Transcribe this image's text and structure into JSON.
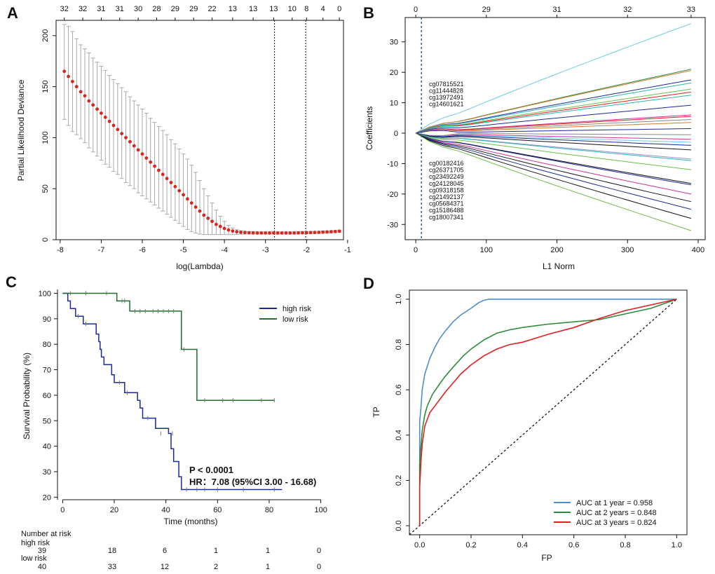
{
  "colors": {
    "red_dot": "#d7261e",
    "err_bar": "#aaaaaa",
    "high_risk": "#1a2a9c",
    "low_risk": "#1e6e2a",
    "roc1": "#4d8ec9",
    "roc2": "#2e8b3a",
    "roc3": "#e02020",
    "vline_b": "#2b5fb8"
  },
  "chart_data": [
    {
      "panel": "A",
      "type": "scatter",
      "xlabel": "log(Lambda)",
      "ylabel": "Partial Likelihood Deviance",
      "xlim": [
        -8.1,
        -1.1
      ],
      "ylim": [
        0,
        215
      ],
      "xticks": [
        -8,
        -7,
        -6,
        -5,
        -4,
        -3,
        -2,
        -1
      ],
      "yticks": [
        0,
        50,
        100,
        150,
        200
      ],
      "top_labels": [
        "32",
        "32",
        "31",
        "31",
        "30",
        "28",
        "29",
        "29",
        "22",
        "13",
        "13",
        "13",
        "10",
        "8",
        "4",
        "0"
      ],
      "top_label_x": [
        -7.9,
        -7.45,
        -7.0,
        -6.55,
        -6.1,
        -5.65,
        -5.2,
        -4.75,
        -4.3,
        -3.8,
        -3.3,
        -2.8,
        -2.35,
        -2.0,
        -1.6,
        -1.2
      ],
      "vlines": [
        -2.78,
        -2.02
      ],
      "x": [
        -7.9,
        -7.8,
        -7.7,
        -7.6,
        -7.5,
        -7.4,
        -7.3,
        -7.2,
        -7.1,
        -7.0,
        -6.9,
        -6.8,
        -6.7,
        -6.6,
        -6.5,
        -6.4,
        -6.3,
        -6.2,
        -6.1,
        -6.0,
        -5.9,
        -5.8,
        -5.7,
        -5.6,
        -5.5,
        -5.4,
        -5.3,
        -5.2,
        -5.1,
        -5.0,
        -4.9,
        -4.8,
        -4.7,
        -4.6,
        -4.5,
        -4.4,
        -4.3,
        -4.2,
        -4.1,
        -4.0,
        -3.9,
        -3.8,
        -3.7,
        -3.6,
        -3.5,
        -3.4,
        -3.3,
        -3.2,
        -3.1,
        -3.0,
        -2.9,
        -2.8,
        -2.7,
        -2.6,
        -2.5,
        -2.4,
        -2.3,
        -2.2,
        -2.1,
        -2.0,
        -1.9,
        -1.8,
        -1.7,
        -1.6,
        -1.5,
        -1.4,
        -1.3,
        -1.2
      ],
      "y": [
        165,
        160,
        155,
        150,
        145,
        141,
        136,
        132,
        128,
        124,
        120,
        116,
        112,
        108,
        104,
        100,
        96,
        92,
        88,
        84,
        80,
        76,
        72,
        68,
        64,
        60,
        56,
        52,
        48,
        44,
        40,
        36,
        32,
        28,
        24,
        21,
        18,
        15,
        13,
        11,
        9.5,
        8.5,
        7.8,
        7.3,
        7.0,
        6.8,
        6.7,
        6.6,
        6.6,
        6.6,
        6.6,
        6.6,
        6.6,
        6.6,
        6.6,
        6.6,
        6.6,
        6.7,
        6.8,
        6.9,
        7.0,
        7.1,
        7.2,
        7.4,
        7.6,
        7.8,
        8.0,
        8.3
      ],
      "err_upper": [
        211,
        209,
        204,
        197,
        191,
        187,
        183,
        178,
        174,
        170,
        166,
        161,
        157,
        153,
        149,
        145,
        140,
        136,
        132,
        128,
        124,
        119,
        115,
        111,
        107,
        103,
        98,
        94,
        89,
        84,
        79,
        73,
        66,
        58,
        50,
        43,
        36,
        29,
        23,
        18,
        14,
        11.5,
        9.8,
        8.8,
        8.3,
        8.0,
        7.8,
        7.7,
        7.7,
        7.7,
        7.7,
        7.7,
        7.7,
        7.7,
        7.7,
        7.7,
        7.7,
        7.8,
        7.9,
        8.0,
        8.1,
        8.2,
        8.3,
        8.5,
        8.7,
        8.9,
        9.1,
        9.4
      ],
      "err_lower": [
        118,
        112,
        106,
        103,
        99,
        95,
        90,
        86,
        82,
        78,
        74,
        71,
        67,
        64,
        60,
        56,
        53,
        50,
        46,
        43,
        40,
        37,
        34,
        31,
        28,
        25,
        22,
        19,
        16,
        13,
        10,
        8,
        6.5,
        5.5,
        5,
        5,
        5,
        5,
        5,
        5,
        5,
        5,
        5.2,
        5.4,
        5.5,
        5.5,
        5.5,
        5.5,
        5.5,
        5.5,
        5.5,
        5.5,
        5.5,
        5.5,
        5.5,
        5.5,
        5.5,
        5.6,
        5.7,
        5.8,
        5.9,
        6.0,
        6.1,
        6.3,
        6.5,
        6.7,
        6.9,
        7.2
      ]
    },
    {
      "panel": "B",
      "type": "line",
      "xlabel": "L1 Norm",
      "ylabel": "Coefficients",
      "xlim": [
        -15,
        410
      ],
      "ylim": [
        -35,
        38
      ],
      "xticks": [
        0,
        100,
        200,
        300,
        400
      ],
      "yticks": [
        -30,
        -20,
        -10,
        0,
        10,
        20,
        30
      ],
      "top_labels": [
        "0",
        "29",
        "31",
        "32",
        "33"
      ],
      "top_label_x": [
        0,
        100,
        200,
        300,
        390
      ],
      "vline": 8,
      "annot_pos": [
        "cg07815521",
        "cg11444828",
        "cg13972491",
        "cg14601621"
      ],
      "annot_neg": [
        "cg00182416",
        "cg26371705",
        "cg23492249",
        "cg24128045",
        "cg09318158",
        "cg21492137",
        "cg05684371",
        "cg15186488",
        "cg18007341"
      ],
      "x_end": 390,
      "series": [
        {
          "end": 36,
          "color": "#6ecbe6"
        },
        {
          "end": 21,
          "color": "#2e8b3a"
        },
        {
          "end": 20.6,
          "color": "#d87a30"
        },
        {
          "end": 17.5,
          "color": "#1a2a9c"
        },
        {
          "end": 16.5,
          "color": "#2bb5b0"
        },
        {
          "end": 14.5,
          "color": "#6abf4b"
        },
        {
          "end": 13.5,
          "color": "#e02020"
        },
        {
          "end": 12.5,
          "color": "#2bb5b0"
        },
        {
          "end": 9.2,
          "color": "#1a2a9c"
        },
        {
          "end": 6,
          "color": "#cc3399"
        },
        {
          "end": 5.5,
          "color": "#e02020"
        },
        {
          "end": 4.5,
          "color": "#888888"
        },
        {
          "end": 3.5,
          "color": "#d87a30"
        },
        {
          "end": 1.5,
          "color": "#1a2a9c"
        },
        {
          "end": -0.5,
          "color": "#888888"
        },
        {
          "end": -2,
          "color": "#cc3399"
        },
        {
          "end": -3,
          "color": "#6ecbe6"
        },
        {
          "end": -4,
          "color": "#1a2a9c"
        },
        {
          "end": -5.5,
          "color": "#111111"
        },
        {
          "end": -8.5,
          "color": "#9a8fd6"
        },
        {
          "end": -9,
          "color": "#2bb5b0"
        },
        {
          "end": -12,
          "color": "#6abf4b"
        },
        {
          "end": -16.5,
          "color": "#111111"
        },
        {
          "end": -17,
          "color": "#1a2a9c"
        },
        {
          "end": -20,
          "color": "#cc3399"
        },
        {
          "end": -22.5,
          "color": "#111111"
        },
        {
          "end": -25,
          "color": "#1a2a9c"
        },
        {
          "end": -28,
          "color": "#111111"
        },
        {
          "end": -32,
          "color": "#6abf4b"
        }
      ]
    },
    {
      "panel": "C",
      "type": "line",
      "xlabel": "Time (months)",
      "ylabel": "Survival Probability (%)",
      "xlim": [
        -2,
        102
      ],
      "ylim": [
        19,
        101.5
      ],
      "xticks": [
        0,
        20,
        40,
        60,
        80,
        100
      ],
      "yticks": [
        20,
        30,
        40,
        50,
        60,
        70,
        80,
        90,
        100
      ],
      "series": [
        {
          "name": "high risk",
          "color": "#1a2a9c",
          "steps": [
            [
              0,
              100
            ],
            [
              2,
              97
            ],
            [
              3,
              94
            ],
            [
              5,
              91
            ],
            [
              8,
              88
            ],
            [
              13,
              84
            ],
            [
              14,
              81
            ],
            [
              14.5,
              78
            ],
            [
              15,
              75
            ],
            [
              16,
              72
            ],
            [
              19,
              68
            ],
            [
              20,
              65
            ],
            [
              24,
              61
            ],
            [
              29,
              58
            ],
            [
              30,
              55
            ],
            [
              31,
              51
            ],
            [
              36,
              47
            ],
            [
              41,
              45
            ],
            [
              42,
              39
            ],
            [
              43,
              34
            ],
            [
              45,
              28
            ],
            [
              46,
              23
            ],
            [
              85,
              23
            ]
          ],
          "censors": [
            [
              6,
              91
            ],
            [
              9,
              88
            ],
            [
              22,
              65
            ],
            [
              25,
              61
            ],
            [
              33,
              51
            ],
            [
              38,
              45
            ],
            [
              42.5,
              45
            ],
            [
              48,
              23
            ],
            [
              52,
              23
            ],
            [
              55,
              23
            ],
            [
              60,
              23
            ],
            [
              70,
              23
            ],
            [
              82,
              23
            ]
          ]
        },
        {
          "name": "low risk",
          "color": "#1e6e2a",
          "steps": [
            [
              0,
              100
            ],
            [
              21,
              97
            ],
            [
              26,
              93
            ],
            [
              46,
              78
            ],
            [
              52,
              58
            ],
            [
              82,
              58
            ]
          ],
          "censors": [
            [
              3,
              100
            ],
            [
              9,
              100
            ],
            [
              17,
              100
            ],
            [
              23,
              97
            ],
            [
              24,
              97
            ],
            [
              28,
              93
            ],
            [
              30,
              93
            ],
            [
              32,
              93
            ],
            [
              35,
              93
            ],
            [
              37,
              93
            ],
            [
              39,
              93
            ],
            [
              41,
              93
            ],
            [
              43,
              93
            ],
            [
              47,
              78
            ],
            [
              55,
              58
            ],
            [
              62,
              58
            ],
            [
              66,
              58
            ],
            [
              77,
              58
            ],
            [
              82,
              58
            ]
          ]
        }
      ],
      "legend": [
        "high risk",
        "low risk"
      ],
      "p_text": "P < 0.0001",
      "hr_text": "HR：7.08 (95%CI 3.00 - 16.68)",
      "risk_table": {
        "title": "Number at risk",
        "rows": [
          {
            "label": "high risk",
            "values": [
              "39",
              "18",
              "6",
              "1",
              "1",
              "0"
            ]
          },
          {
            "label": "low risk",
            "values": [
              "40",
              "33",
              "12",
              "2",
              "1",
              "0"
            ]
          }
        ]
      }
    },
    {
      "panel": "D",
      "type": "line",
      "xlabel": "FP",
      "ylabel": "TP",
      "xlim": [
        -0.04,
        1.04
      ],
      "ylim": [
        -0.04,
        1.04
      ],
      "xticks": [
        0.0,
        0.2,
        0.4,
        0.6,
        0.8,
        1.0
      ],
      "yticks": [
        0.0,
        0.2,
        0.4,
        0.6,
        0.8,
        1.0
      ],
      "series": [
        {
          "name": "AUC at 1 year = 0.958",
          "color": "#4d8ec9",
          "x": [
            0,
            0,
            0.005,
            0.01,
            0.02,
            0.04,
            0.06,
            0.08,
            0.1,
            0.13,
            0.16,
            0.2,
            0.23,
            0.25,
            0.27,
            0.3,
            0.5,
            0.8,
            1.0
          ],
          "y": [
            0,
            0.46,
            0.52,
            0.6,
            0.67,
            0.74,
            0.79,
            0.83,
            0.86,
            0.9,
            0.93,
            0.96,
            0.985,
            0.995,
            1.0,
            1.0,
            1.0,
            1.0,
            1.0
          ]
        },
        {
          "name": "AUC at 2 years = 0.848",
          "color": "#2e8b3a",
          "x": [
            0,
            0,
            0.005,
            0.01,
            0.02,
            0.03,
            0.05,
            0.08,
            0.1,
            0.13,
            0.17,
            0.2,
            0.25,
            0.3,
            0.35,
            0.4,
            0.5,
            0.6,
            0.7,
            0.8,
            0.9,
            1.0
          ],
          "y": [
            0,
            0.27,
            0.35,
            0.42,
            0.49,
            0.53,
            0.58,
            0.63,
            0.66,
            0.7,
            0.75,
            0.78,
            0.82,
            0.85,
            0.865,
            0.875,
            0.89,
            0.9,
            0.91,
            0.935,
            0.96,
            1.0
          ]
        },
        {
          "name": "AUC at 3 years = 0.824",
          "color": "#e02020",
          "x": [
            0,
            0,
            0.005,
            0.01,
            0.02,
            0.04,
            0.06,
            0.08,
            0.1,
            0.13,
            0.16,
            0.2,
            0.25,
            0.3,
            0.35,
            0.4,
            0.5,
            0.6,
            0.7,
            0.8,
            0.9,
            1.0
          ],
          "y": [
            0,
            0.17,
            0.28,
            0.36,
            0.44,
            0.5,
            0.53,
            0.56,
            0.59,
            0.63,
            0.67,
            0.71,
            0.75,
            0.78,
            0.8,
            0.81,
            0.845,
            0.875,
            0.915,
            0.95,
            0.975,
            1.0
          ]
        }
      ],
      "diagonal": true
    }
  ]
}
